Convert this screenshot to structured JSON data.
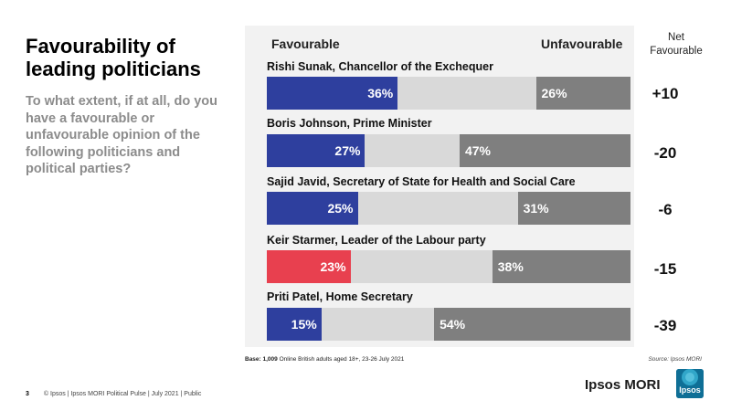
{
  "title": "Favourability of leading politicians",
  "subtitle": "To what extent, if at all, do you have a favourable or unfavourable opinion of the following politicians and political parties?",
  "headers": {
    "favourable": "Favourable",
    "unfavourable": "Unfavourable",
    "net_line1": "Net",
    "net_line2": "Favourable"
  },
  "colors": {
    "conservative": "#2e3f9e",
    "labour": "#e8404f",
    "unfavourable": "#7f7f7f",
    "neutral": "#d9d9d9"
  },
  "chart_data": {
    "type": "bar",
    "stacked": true,
    "orientation": "horizontal",
    "xlim": [
      0,
      100
    ],
    "categories": [
      "Rishi Sunak, Chancellor of the Exchequer",
      "Boris Johnson, Prime Minister",
      "Sajid Javid, Secretary of State for Health and Social Care",
      "Keir Starmer, Leader of the Labour party",
      "Priti Patel, Home Secretary"
    ],
    "series": [
      {
        "name": "Favourable",
        "values": [
          36,
          27,
          25,
          23,
          15
        ],
        "labels": [
          "36%",
          "27%",
          "25%",
          "23%",
          "15%"
        ]
      },
      {
        "name": "Unfavourable",
        "values": [
          26,
          47,
          31,
          38,
          54
        ],
        "labels": [
          "26%",
          "47%",
          "31%",
          "38%",
          "54%"
        ]
      }
    ],
    "net_favourable": [
      "+10",
      "-20",
      "-6",
      "-15",
      "-39"
    ],
    "bar_colors": [
      "#2e3f9e",
      "#2e3f9e",
      "#2e3f9e",
      "#e8404f",
      "#2e3f9e"
    ]
  },
  "base": {
    "label": "Base: 1,009",
    "text": " Online British adults aged 18+, 23-26 July 2021"
  },
  "source": "Source: Ipsos MORI",
  "footer": {
    "page": "3",
    "text": "© Ipsos | Ipsos MORI Political Pulse | July 2021 | Public"
  },
  "logo": {
    "text": "Ipsos MORI",
    "badge": "Ipsos"
  }
}
